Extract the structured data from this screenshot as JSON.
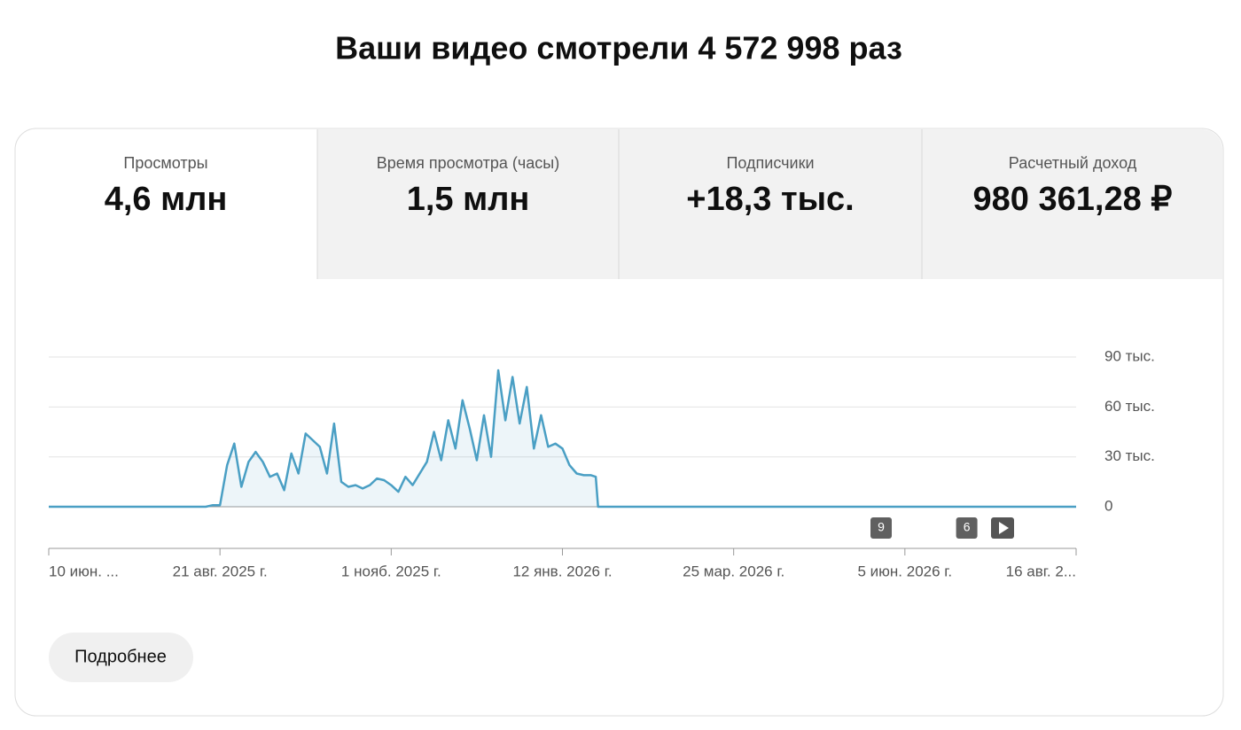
{
  "header": {
    "title": "Ваши видео смотрели 4 572 998 раз"
  },
  "tabs": [
    {
      "label": "Просмотры",
      "value": "4,6 млн"
    },
    {
      "label": "Время просмотра (часы)",
      "value": "1,5 млн"
    },
    {
      "label": "Подписчики",
      "value": "+18,3 тыс."
    },
    {
      "label": "Расчетный доход",
      "value": "980 361,28 ₽"
    }
  ],
  "chart_data": {
    "type": "line",
    "x": [
      "2025-06-10",
      "2025-08-15",
      "2025-08-18",
      "2025-08-21",
      "2025-08-24",
      "2025-08-27",
      "2025-08-30",
      "2025-09-02",
      "2025-09-05",
      "2025-09-08",
      "2025-09-11",
      "2025-09-14",
      "2025-09-17",
      "2025-09-20",
      "2025-09-23",
      "2025-09-26",
      "2025-09-29",
      "2025-10-02",
      "2025-10-05",
      "2025-10-08",
      "2025-10-11",
      "2025-10-14",
      "2025-10-17",
      "2025-10-20",
      "2025-10-23",
      "2025-10-26",
      "2025-10-29",
      "2025-11-01",
      "2025-11-04",
      "2025-11-07",
      "2025-11-10",
      "2025-11-13",
      "2025-11-16",
      "2025-11-19",
      "2025-11-22",
      "2025-11-25",
      "2025-11-28",
      "2025-12-01",
      "2025-12-04",
      "2025-12-07",
      "2025-12-10",
      "2025-12-13",
      "2025-12-16",
      "2025-12-19",
      "2025-12-22",
      "2025-12-25",
      "2025-12-28",
      "2025-12-31",
      "2026-01-03",
      "2026-01-06",
      "2026-01-09",
      "2026-01-12",
      "2026-01-15",
      "2026-01-18",
      "2026-01-21",
      "2026-01-24",
      "2026-01-26",
      "2026-01-27",
      "2026-08-16"
    ],
    "series": [
      {
        "color": "#4a9fc4",
        "values": [
          0,
          0,
          1000,
          1000,
          25000,
          38000,
          12000,
          27000,
          33000,
          27000,
          18000,
          20000,
          10000,
          32000,
          20000,
          44000,
          40000,
          36000,
          20000,
          50000,
          15000,
          12000,
          13000,
          11000,
          13000,
          17000,
          16000,
          13000,
          9000,
          18000,
          13000,
          20000,
          27000,
          45000,
          28000,
          52000,
          35000,
          64000,
          47000,
          28000,
          55000,
          30000,
          82000,
          52000,
          78000,
          50000,
          72000,
          35000,
          55000,
          36000,
          38000,
          35000,
          25000,
          20000,
          19000,
          19000,
          18000,
          0,
          0
        ]
      }
    ],
    "xlim": [
      "2025-06-10",
      "2026-08-16"
    ],
    "xticks": [
      {
        "value": "2025-06-10",
        "label": "10 июн. ..."
      },
      {
        "value": "2025-08-21",
        "label": "21 авг. 2025 г."
      },
      {
        "value": "2025-11-01",
        "label": "1 нояб. 2025 г."
      },
      {
        "value": "2026-01-12",
        "label": "12 янв. 2026 г."
      },
      {
        "value": "2026-03-25",
        "label": "25 мар. 2026 г."
      },
      {
        "value": "2026-06-05",
        "label": "5 июн. 2026 г."
      },
      {
        "value": "2026-08-16",
        "label": "16 авг. 2..."
      }
    ],
    "ylim": [
      -25000,
      90000
    ],
    "yticks": [
      0,
      {
        "value": 30000,
        "label": "30 тыс."
      },
      {
        "value": 60000,
        "label": "60 тыс."
      },
      {
        "value": 90000,
        "label": "90 тыс."
      }
    ],
    "grid": true,
    "annotations": [
      {
        "x": "2026-05-26",
        "label": "9"
      },
      {
        "x": "2026-07-01",
        "label": "6"
      }
    ]
  },
  "button": {
    "label": "Подробнее"
  }
}
